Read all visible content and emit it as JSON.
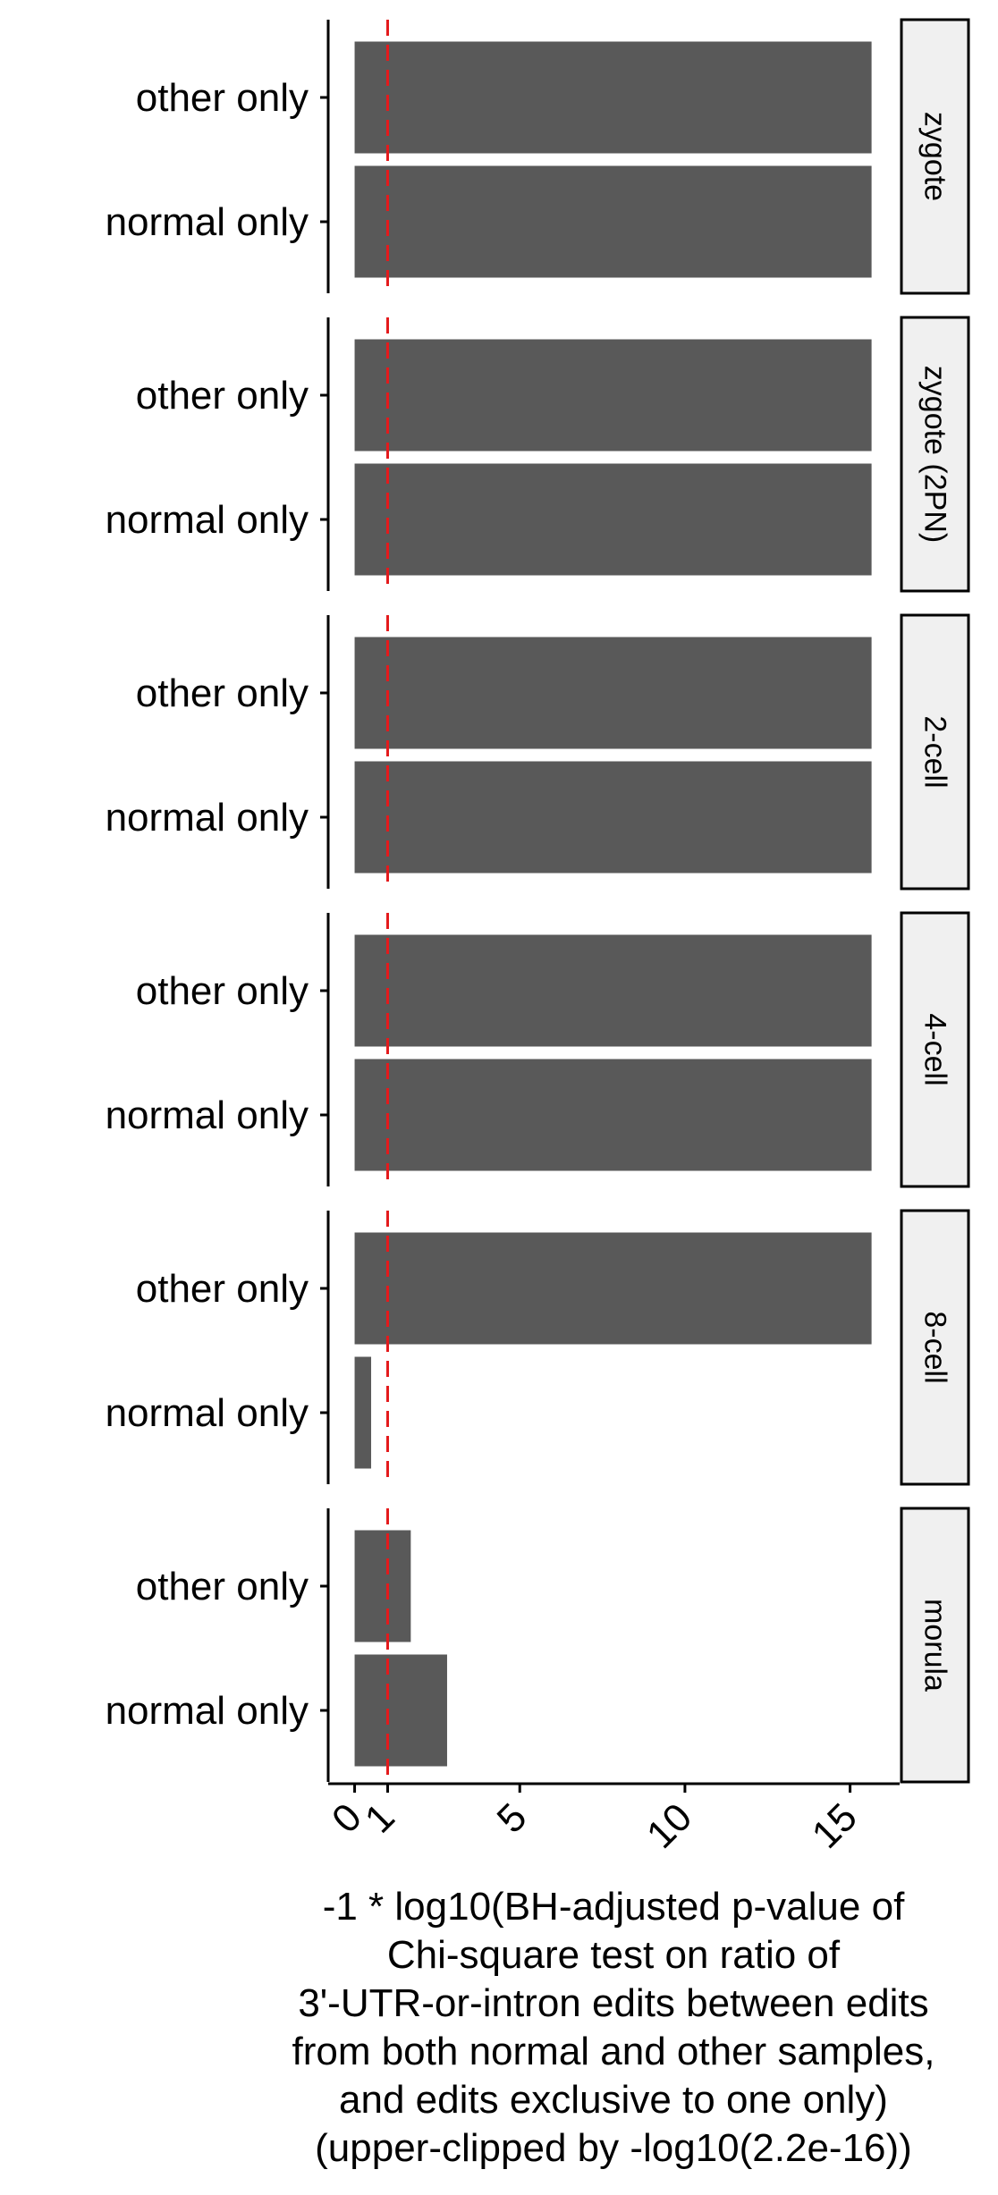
{
  "chart_data": {
    "type": "bar",
    "orientation": "horizontal",
    "facet_by": "row",
    "categories": [
      "other only",
      "normal only"
    ],
    "facets": [
      {
        "label": "zygote",
        "values": [
          15.65,
          15.65
        ]
      },
      {
        "label": "zygote (2PN)",
        "values": [
          15.65,
          15.65
        ]
      },
      {
        "label": "2-cell",
        "values": [
          15.65,
          15.65
        ]
      },
      {
        "label": "4-cell",
        "values": [
          15.65,
          15.65
        ]
      },
      {
        "label": "8-cell",
        "values": [
          15.65,
          0.5
        ]
      },
      {
        "label": "morula",
        "values": [
          1.7,
          2.8
        ]
      }
    ],
    "xlabel_lines": [
      "-1 * log10(BH-adjusted p-value of",
      "Chi-square test on ratio of",
      "3'-UTR-or-intron edits between edits",
      "from both normal and other samples,",
      "and edits exclusive to one only)",
      "(upper-clipped by -log10(2.2e-16))"
    ],
    "x_ticks": [
      0,
      1,
      5,
      10,
      15
    ],
    "x_tick_labels": [
      "0",
      "1",
      "5",
      "10",
      "15"
    ],
    "xlim": [
      -0.8,
      16.5
    ],
    "reference_line": {
      "x": 1,
      "style": "dashed",
      "color": "#e41a1c"
    },
    "bar_color": "#595959",
    "strip_fill": "#f0f0f0",
    "grid": false,
    "legend": "none"
  }
}
